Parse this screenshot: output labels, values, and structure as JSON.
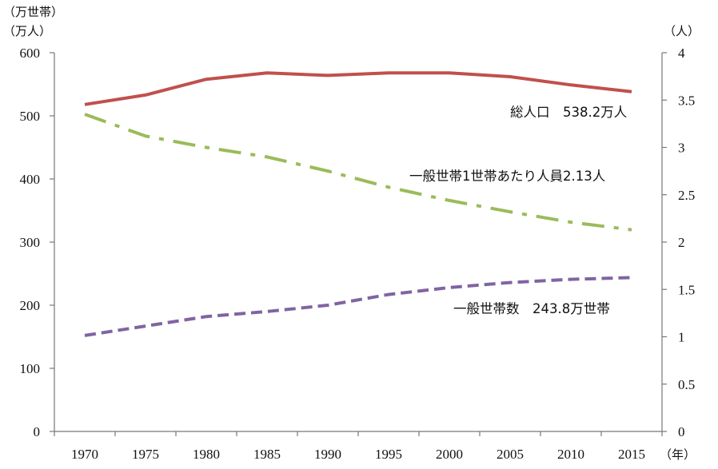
{
  "chart_data": {
    "type": "line",
    "categories": [
      "1970",
      "1975",
      "1980",
      "1985",
      "1990",
      "1995",
      "2000",
      "2005",
      "2010",
      "2015"
    ],
    "left_axis": {
      "unit_lines": [
        "（万世帯）",
        "（万人）"
      ],
      "ticks": [
        "0",
        "100",
        "200",
        "300",
        "400",
        "500",
        "600"
      ],
      "ylim": [
        0,
        600
      ]
    },
    "right_axis": {
      "unit_lines": [
        "（人）"
      ],
      "ticks": [
        "0",
        "0.5",
        "1",
        "1.5",
        "2",
        "2.5",
        "3",
        "3.5",
        "4"
      ],
      "ylim": [
        0,
        4
      ]
    },
    "x_unit": "（年）",
    "series": [
      {
        "name": "総人口",
        "axis": "left",
        "color": "#c0504d",
        "style": "solid",
        "values": [
          518,
          533,
          558,
          568,
          564,
          568,
          568,
          562,
          549,
          538.2
        ],
        "label": "総人口　538.2万人"
      },
      {
        "name": "一般世帯1世帯あたり人員",
        "axis": "right",
        "color": "#9bbb59",
        "style": "dashdot",
        "values": [
          3.35,
          3.12,
          3.0,
          2.9,
          2.75,
          2.58,
          2.44,
          2.32,
          2.21,
          2.13
        ],
        "label": "一般世帯1世帯あたり人員2.13人"
      },
      {
        "name": "一般世帯数",
        "axis": "left",
        "color": "#8064a2",
        "style": "dashed",
        "values": [
          152,
          167,
          182,
          190,
          200,
          217,
          228,
          236,
          241,
          243.8
        ],
        "label": "一般世帯数　243.8万世帯"
      }
    ]
  }
}
